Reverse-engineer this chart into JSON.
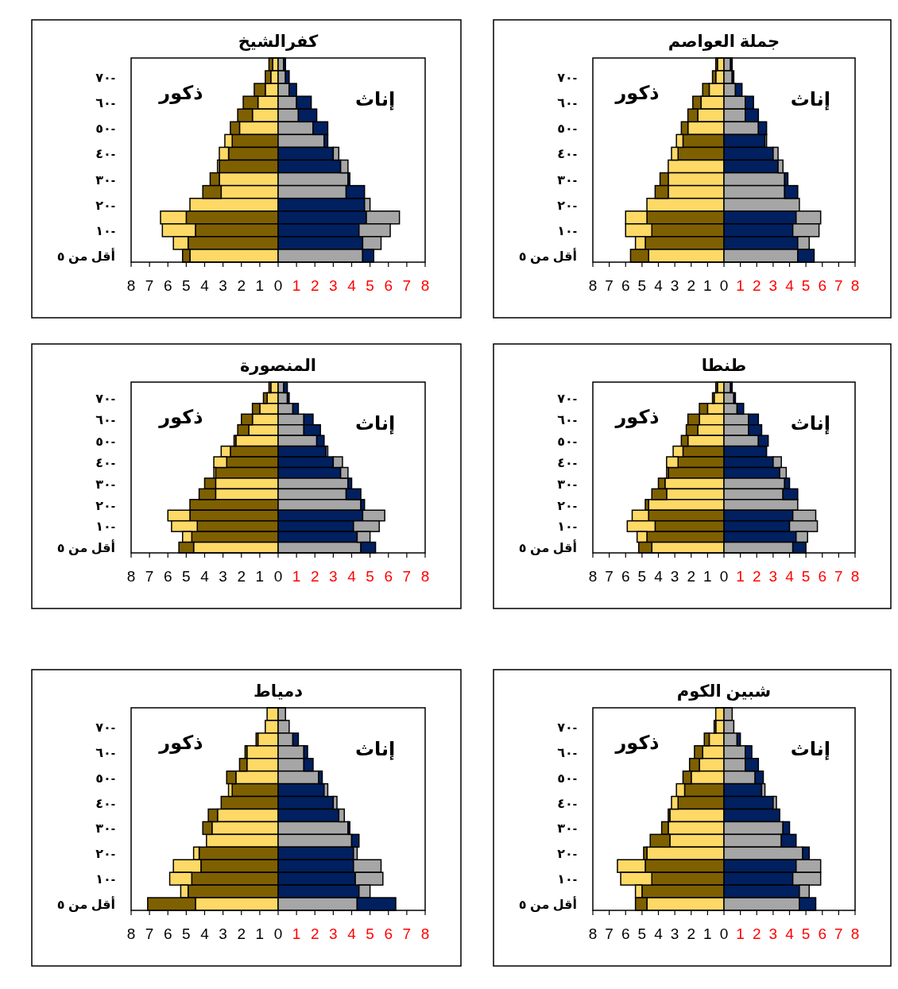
{
  "chart_data": [
    {
      "type": "bar",
      "orientation": "horizontal",
      "stacked": true,
      "title": "جملة العواصم",
      "annotations": [
        "ذكور",
        "إناث"
      ],
      "categories": [
        null,
        "٧٠-",
        null,
        "٦٠-",
        null,
        "٥٠-",
        null,
        "٤٠-",
        null,
        "٣٠-",
        null,
        "٢٠-",
        null,
        "١٠-",
        null,
        "أقل من ٥"
      ],
      "xlim": [
        -8,
        8
      ],
      "xticks": [
        {
          "value": -8,
          "label": "8"
        },
        {
          "value": -7,
          "label": "7"
        },
        {
          "value": -6,
          "label": "6"
        },
        {
          "value": -5,
          "label": "5"
        },
        {
          "value": -4,
          "label": "4"
        },
        {
          "value": -3,
          "label": "3"
        },
        {
          "value": -2,
          "label": "2"
        },
        {
          "value": -1,
          "label": "1"
        },
        0,
        1,
        2,
        3,
        4,
        5,
        6,
        7,
        8
      ],
      "series": [
        {
          "values": [
            -0.4,
            -0.5,
            -0.9,
            -1.4,
            -1.6,
            -2.2,
            -2.5,
            -2.8,
            -3.4,
            -3.4,
            -3.4,
            -4.7,
            -4.7,
            -4.4,
            -4.8,
            -4.6
          ],
          "colors": [
            "#ffd966",
            "#ffd966",
            "#ffd966",
            "#ffd966",
            "#ffd966",
            "#ffd966",
            "#7f6000",
            "#7f6000",
            "#ffd966",
            "#ffd966",
            "#ffd966",
            "#ffd966",
            "#7f6000",
            "#7f6000",
            "#7f6000",
            "#ffd966"
          ]
        },
        {
          "values": [
            -0.1,
            -0.2,
            -0.4,
            -0.5,
            -0.6,
            -0.4,
            -0.4,
            -0.4,
            0,
            -0.5,
            -0.8,
            0,
            -1.3,
            -1.6,
            -0.6,
            -1.1
          ],
          "colors": [
            "#7f6000",
            "#7f6000",
            "#7f6000",
            "#7f6000",
            "#7f6000",
            "#7f6000",
            "#ffd966",
            "#ffd966",
            "#7f6000",
            "#7f6000",
            "#7f6000",
            "#7f6000",
            "#ffd966",
            "#ffd966",
            "#ffd966",
            "#7f6000"
          ]
        },
        {
          "values": [
            0.4,
            0.5,
            0.7,
            1.3,
            1.3,
            2.1,
            2.5,
            3.0,
            3.3,
            3.7,
            3.7,
            4.6,
            4.4,
            4.2,
            4.5,
            4.5
          ],
          "colors": [
            "#a6a6a6",
            "#a6a6a6",
            "#a6a6a6",
            "#a6a6a6",
            "#a6a6a6",
            "#a6a6a6",
            "#002060",
            "#002060",
            "#002060",
            "#a6a6a6",
            "#a6a6a6",
            "#a6a6a6",
            "#002060",
            "#002060",
            "#002060",
            "#a6a6a6"
          ]
        },
        {
          "values": [
            0.1,
            0.1,
            0.4,
            0.5,
            0.8,
            0.5,
            0.1,
            0.3,
            0.3,
            0.2,
            0.8,
            0,
            1.5,
            1.6,
            0.7,
            1.0
          ],
          "colors": [
            "#002060",
            "#002060",
            "#002060",
            "#002060",
            "#002060",
            "#002060",
            "#a6a6a6",
            "#a6a6a6",
            "#a6a6a6",
            "#002060",
            "#002060",
            "#002060",
            "#a6a6a6",
            "#a6a6a6",
            "#a6a6a6",
            "#002060"
          ]
        }
      ]
    },
    {
      "type": "bar",
      "orientation": "horizontal",
      "stacked": true,
      "title": "كفرالشيخ",
      "annotations": [
        "ذكور",
        "إناث"
      ],
      "categories": [
        null,
        "٧٠-",
        null,
        "٦٠-",
        null,
        "٥٠-",
        null,
        "٤٠-",
        null,
        "٣٠-",
        null,
        "٢٠-",
        null,
        "١٠-",
        null,
        "أقل من ٥"
      ],
      "xlim": [
        -8,
        8
      ],
      "xticks": [
        {
          "value": -8,
          "label": "8"
        },
        {
          "value": -7,
          "label": "7"
        },
        {
          "value": -6,
          "label": "6"
        },
        {
          "value": -5,
          "label": "5"
        },
        {
          "value": -4,
          "label": "4"
        },
        {
          "value": -3,
          "label": "3"
        },
        {
          "value": -2,
          "label": "2"
        },
        {
          "value": -1,
          "label": "1"
        },
        0,
        1,
        2,
        3,
        4,
        5,
        6,
        7,
        8
      ],
      "series": [
        {
          "values": [
            -0.3,
            -0.4,
            -0.7,
            -1.1,
            -1.4,
            -2.1,
            -2.5,
            -2.7,
            -3.2,
            -3.2,
            -3.1,
            -4.8,
            -5.0,
            -4.5,
            -4.9,
            -4.8
          ],
          "colors": [
            "#ffd966",
            "#ffd966",
            "#ffd966",
            "#ffd966",
            "#ffd966",
            "#ffd966",
            "#7f6000",
            "#7f6000",
            "#7f6000",
            "#ffd966",
            "#ffd966",
            "#ffd966",
            "#7f6000",
            "#7f6000",
            "#7f6000",
            "#ffd966"
          ]
        },
        {
          "values": [
            -0.2,
            -0.3,
            -0.6,
            -0.8,
            -0.8,
            -0.5,
            -0.4,
            -0.5,
            -0.1,
            -0.5,
            -1.0,
            0,
            -1.4,
            -1.8,
            -0.8,
            -0.4
          ],
          "colors": [
            "#7f6000",
            "#7f6000",
            "#7f6000",
            "#7f6000",
            "#7f6000",
            "#7f6000",
            "#ffd966",
            "#ffd966",
            "#ffd966",
            "#7f6000",
            "#7f6000",
            "#7f6000",
            "#ffd966",
            "#ffd966",
            "#ffd966",
            "#7f6000"
          ]
        },
        {
          "values": [
            0.3,
            0.4,
            0.6,
            1.0,
            1.1,
            1.9,
            2.5,
            3.0,
            3.4,
            3.8,
            3.7,
            4.7,
            4.8,
            4.4,
            4.6,
            4.6
          ],
          "colors": [
            "#a6a6a6",
            "#a6a6a6",
            "#a6a6a6",
            "#a6a6a6",
            "#a6a6a6",
            "#a6a6a6",
            "#a6a6a6",
            "#002060",
            "#002060",
            "#a6a6a6",
            "#a6a6a6",
            "#002060",
            "#002060",
            "#002060",
            "#002060",
            "#a6a6a6"
          ]
        },
        {
          "values": [
            0.1,
            0.2,
            0.4,
            0.8,
            1.0,
            0.8,
            0.2,
            0.3,
            0.4,
            0.1,
            1.0,
            0.3,
            1.8,
            1.7,
            1.0,
            0.6
          ],
          "colors": [
            "#002060",
            "#002060",
            "#002060",
            "#002060",
            "#002060",
            "#002060",
            "#002060",
            "#a6a6a6",
            "#a6a6a6",
            "#002060",
            "#002060",
            "#a6a6a6",
            "#a6a6a6",
            "#a6a6a6",
            "#a6a6a6",
            "#002060"
          ]
        }
      ]
    },
    {
      "type": "bar",
      "orientation": "horizontal",
      "stacked": true,
      "title": "طنطا",
      "annotations": [
        "ذكور",
        "إناث"
      ],
      "categories": [
        null,
        "٧٠-",
        null,
        "٦٠-",
        null,
        "٥٠-",
        null,
        "٤٠-",
        null,
        "٣٠-",
        null,
        "٢٠-",
        null,
        "١٠-",
        null,
        "أقل من ٥"
      ],
      "xlim": [
        -8,
        8
      ],
      "xticks": [
        {
          "value": -8,
          "label": "8"
        },
        {
          "value": -7,
          "label": "7"
        },
        {
          "value": -6,
          "label": "6"
        },
        {
          "value": -5,
          "label": "5"
        },
        {
          "value": -4,
          "label": "4"
        },
        {
          "value": -3,
          "label": "3"
        },
        {
          "value": -2,
          "label": "2"
        },
        {
          "value": -1,
          "label": "1"
        },
        0,
        1,
        2,
        3,
        4,
        5,
        6,
        7,
        8
      ],
      "series": [
        {
          "values": [
            -0.4,
            -0.6,
            -1.0,
            -1.5,
            -1.6,
            -2.2,
            -2.5,
            -2.8,
            -3.4,
            -3.6,
            -3.5,
            -4.6,
            -4.6,
            -4.2,
            -4.7,
            -4.4
          ],
          "colors": [
            "#ffd966",
            "#ffd966",
            "#ffd966",
            "#ffd966",
            "#ffd966",
            "#ffd966",
            "#7f6000",
            "#7f6000",
            "#7f6000",
            "#ffd966",
            "#ffd966",
            "#ffd966",
            "#7f6000",
            "#7f6000",
            "#7f6000",
            "#ffd966"
          ]
        },
        {
          "values": [
            -0.1,
            -0.1,
            -0.5,
            -0.7,
            -0.7,
            -0.4,
            -0.6,
            -0.7,
            -0.1,
            -0.4,
            -0.9,
            -0.2,
            -1.0,
            -1.7,
            -0.6,
            -0.8
          ],
          "colors": [
            "#7f6000",
            "#7f6000",
            "#7f6000",
            "#7f6000",
            "#7f6000",
            "#7f6000",
            "#ffd966",
            "#ffd966",
            "#ffd966",
            "#7f6000",
            "#7f6000",
            "#7f6000",
            "#ffd966",
            "#ffd966",
            "#ffd966",
            "#7f6000"
          ]
        },
        {
          "values": [
            0.4,
            0.6,
            0.8,
            1.5,
            1.5,
            2.1,
            2.6,
            3.0,
            3.4,
            3.7,
            3.6,
            4.5,
            4.2,
            4.0,
            4.4,
            4.2
          ],
          "colors": [
            "#a6a6a6",
            "#a6a6a6",
            "#a6a6a6",
            "#a6a6a6",
            "#a6a6a6",
            "#a6a6a6",
            "#002060",
            "#002060",
            "#002060",
            "#a6a6a6",
            "#a6a6a6",
            "#a6a6a6",
            "#002060",
            "#002060",
            "#002060",
            "#a6a6a6"
          ]
        },
        {
          "values": [
            0.1,
            0.1,
            0.4,
            0.6,
            0.8,
            0.6,
            0,
            0.5,
            0.4,
            0.3,
            0.9,
            0,
            1.4,
            1.7,
            0.7,
            0.8
          ],
          "colors": [
            "#002060",
            "#002060",
            "#002060",
            "#002060",
            "#002060",
            "#002060",
            "#a6a6a6",
            "#a6a6a6",
            "#a6a6a6",
            "#002060",
            "#002060",
            "#002060",
            "#a6a6a6",
            "#a6a6a6",
            "#a6a6a6",
            "#002060"
          ]
        }
      ]
    },
    {
      "type": "bar",
      "orientation": "horizontal",
      "stacked": true,
      "title": "المنصورة",
      "annotations": [
        "ذكور",
        "إناث"
      ],
      "categories": [
        null,
        "٧٠-",
        null,
        "٦٠-",
        null,
        "٥٠-",
        null,
        "٤٠-",
        null,
        "٣٠-",
        null,
        "٢٠-",
        null,
        "١٠-",
        null,
        "أقل من ٥"
      ],
      "xlim": [
        -8,
        8
      ],
      "xticks": [
        {
          "value": -8,
          "label": "8"
        },
        {
          "value": -7,
          "label": "7"
        },
        {
          "value": -6,
          "label": "6"
        },
        {
          "value": -5,
          "label": "5"
        },
        {
          "value": -4,
          "label": "4"
        },
        {
          "value": -3,
          "label": "3"
        },
        {
          "value": -2,
          "label": "2"
        },
        {
          "value": -1,
          "label": "1"
        },
        0,
        1,
        2,
        3,
        4,
        5,
        6,
        7,
        8
      ],
      "series": [
        {
          "values": [
            -0.4,
            -0.6,
            -1.0,
            -1.4,
            -1.6,
            -2.3,
            -2.6,
            -2.8,
            -3.4,
            -3.4,
            -3.4,
            -4.8,
            -4.8,
            -4.4,
            -4.7,
            -4.6
          ],
          "colors": [
            "#ffd966",
            "#ffd966",
            "#ffd966",
            "#ffd966",
            "#ffd966",
            "#ffd966",
            "#7f6000",
            "#7f6000",
            "#7f6000",
            "#ffd966",
            "#ffd966",
            "#7f6000",
            "#7f6000",
            "#7f6000",
            "#7f6000",
            "#ffd966"
          ]
        },
        {
          "values": [
            -0.1,
            -0.2,
            -0.4,
            -0.6,
            -0.6,
            -0.1,
            -0.5,
            -0.7,
            -0.1,
            -0.6,
            -0.9,
            0,
            -1.2,
            -1.4,
            -0.5,
            -0.8
          ],
          "colors": [
            "#7f6000",
            "#7f6000",
            "#7f6000",
            "#7f6000",
            "#7f6000",
            "#7f6000",
            "#ffd966",
            "#ffd966",
            "#ffd966",
            "#7f6000",
            "#7f6000",
            "#ffd966",
            "#ffd966",
            "#ffd966",
            "#ffd966",
            "#7f6000"
          ]
        },
        {
          "values": [
            0.3,
            0.5,
            0.8,
            1.4,
            1.4,
            2.1,
            2.6,
            3.0,
            3.4,
            3.8,
            3.7,
            4.5,
            4.6,
            4.1,
            4.3,
            4.5
          ],
          "colors": [
            "#a6a6a6",
            "#a6a6a6",
            "#a6a6a6",
            "#a6a6a6",
            "#a6a6a6",
            "#a6a6a6",
            "#002060",
            "#002060",
            "#002060",
            "#a6a6a6",
            "#a6a6a6",
            "#a6a6a6",
            "#002060",
            "#002060",
            "#002060",
            "#a6a6a6"
          ]
        },
        {
          "values": [
            0.2,
            0.1,
            0.3,
            0.5,
            0.9,
            0.4,
            0.1,
            0.5,
            0.4,
            0.2,
            0.8,
            0.2,
            1.2,
            1.4,
            0.7,
            0.8
          ],
          "colors": [
            "#002060",
            "#002060",
            "#002060",
            "#002060",
            "#002060",
            "#002060",
            "#a6a6a6",
            "#a6a6a6",
            "#a6a6a6",
            "#002060",
            "#002060",
            "#002060",
            "#a6a6a6",
            "#a6a6a6",
            "#a6a6a6",
            "#002060"
          ]
        }
      ]
    },
    {
      "type": "bar",
      "orientation": "horizontal",
      "stacked": true,
      "title": "شبين الكوم",
      "annotations": [
        "ذكور",
        "إناث"
      ],
      "categories": [
        null,
        "٧٠-",
        null,
        "٦٠-",
        null,
        "٥٠-",
        null,
        "٤٠-",
        null,
        "٣٠-",
        null,
        "٢٠-",
        null,
        "١٠-",
        null,
        "أقل من ٥"
      ],
      "xlim": [
        -8,
        8
      ],
      "xticks": [
        {
          "value": -8,
          "label": "8"
        },
        {
          "value": -7,
          "label": "7"
        },
        {
          "value": -6,
          "label": "6"
        },
        {
          "value": -5,
          "label": "5"
        },
        {
          "value": -4,
          "label": "4"
        },
        {
          "value": -3,
          "label": "3"
        },
        {
          "value": -2,
          "label": "2"
        },
        {
          "value": -1,
          "label": "1"
        },
        0,
        1,
        2,
        3,
        4,
        5,
        6,
        7,
        8
      ],
      "series": [
        {
          "values": [
            -0.5,
            -0.5,
            -0.9,
            -1.3,
            -1.5,
            -2.0,
            -2.4,
            -2.8,
            -3.3,
            -3.4,
            -3.3,
            -4.7,
            -4.8,
            -4.4,
            -5.0,
            -4.7
          ],
          "colors": [
            "#ffd966",
            "#ffd966",
            "#ffd966",
            "#ffd966",
            "#ffd966",
            "#ffd966",
            "#7f6000",
            "#7f6000",
            "#ffd966",
            "#ffd966",
            "#ffd966",
            "#ffd966",
            "#7f6000",
            "#7f6000",
            "#7f6000",
            "#ffd966"
          ]
        },
        {
          "values": [
            0,
            -0.1,
            -0.3,
            -0.5,
            -0.6,
            -0.5,
            -0.5,
            -0.4,
            -0.1,
            -0.4,
            -1.2,
            -0.2,
            -1.7,
            -1.9,
            -0.4,
            -0.7
          ],
          "colors": [
            "#7f6000",
            "#7f6000",
            "#7f6000",
            "#7f6000",
            "#7f6000",
            "#7f6000",
            "#ffd966",
            "#ffd966",
            "#7f6000",
            "#7f6000",
            "#7f6000",
            "#7f6000",
            "#ffd966",
            "#ffd966",
            "#ffd966",
            "#7f6000"
          ]
        },
        {
          "values": [
            0.5,
            0.6,
            0.8,
            1.3,
            1.3,
            1.9,
            2.3,
            3.0,
            3.4,
            3.6,
            3.5,
            4.8,
            4.4,
            4.2,
            4.6,
            4.6
          ],
          "colors": [
            "#a6a6a6",
            "#a6a6a6",
            "#a6a6a6",
            "#a6a6a6",
            "#a6a6a6",
            "#a6a6a6",
            "#002060",
            "#002060",
            "#002060",
            "#a6a6a6",
            "#a6a6a6",
            "#a6a6a6",
            "#002060",
            "#002060",
            "#002060",
            "#a6a6a6"
          ]
        },
        {
          "values": [
            0,
            0,
            0.2,
            0.4,
            0.8,
            0.5,
            0.2,
            0.2,
            0,
            0.4,
            0.9,
            0.4,
            1.5,
            1.7,
            0.6,
            1.0
          ],
          "colors": [
            "#002060",
            "#002060",
            "#002060",
            "#002060",
            "#002060",
            "#002060",
            "#a6a6a6",
            "#a6a6a6",
            "#a6a6a6",
            "#002060",
            "#002060",
            "#002060",
            "#a6a6a6",
            "#a6a6a6",
            "#a6a6a6",
            "#002060"
          ]
        }
      ]
    },
    {
      "type": "bar",
      "orientation": "horizontal",
      "stacked": true,
      "title": "دمياط",
      "annotations": [
        "ذكور",
        "إناث"
      ],
      "categories": [
        null,
        "٧٠-",
        null,
        "٦٠-",
        null,
        "٥٠-",
        null,
        "٤٠-",
        null,
        "٣٠-",
        null,
        "٢٠-",
        null,
        "١٠-",
        null,
        "أقل من ٥"
      ],
      "xlim": [
        -8,
        8
      ],
      "xticks": [
        {
          "value": -8,
          "label": "8"
        },
        {
          "value": -7,
          "label": "7"
        },
        {
          "value": -6,
          "label": "6"
        },
        {
          "value": -5,
          "label": "5"
        },
        {
          "value": -4,
          "label": "4"
        },
        {
          "value": -3,
          "label": "3"
        },
        {
          "value": -2,
          "label": "2"
        },
        {
          "value": -1,
          "label": "1"
        },
        0,
        1,
        2,
        3,
        4,
        5,
        6,
        7,
        8
      ],
      "series": [
        {
          "values": [
            -0.6,
            -0.7,
            -1.1,
            -1.7,
            -1.7,
            -2.3,
            -2.5,
            -3.1,
            -3.3,
            -3.6,
            -3.9,
            -4.3,
            -4.2,
            -4.7,
            -4.9,
            -4.5
          ],
          "colors": [
            "#ffd966",
            "#ffd966",
            "#ffd966",
            "#ffd966",
            "#ffd966",
            "#ffd966",
            "#7f6000",
            "#7f6000",
            "#ffd966",
            "#ffd966",
            "#ffd966",
            "#7f6000",
            "#7f6000",
            "#7f6000",
            "#7f6000",
            "#ffd966"
          ]
        },
        {
          "values": [
            0,
            0,
            -0.1,
            -0.1,
            -0.4,
            -0.5,
            -0.2,
            0,
            -0.5,
            -0.5,
            0,
            -0.3,
            -1.5,
            -1.2,
            -0.4,
            -2.6
          ],
          "colors": [
            "#7f6000",
            "#7f6000",
            "#7f6000",
            "#7f6000",
            "#7f6000",
            "#7f6000",
            "#ffd966",
            "#ffd966",
            "#7f6000",
            "#7f6000",
            "#7f6000",
            "#ffd966",
            "#ffd966",
            "#ffd966",
            "#ffd966",
            "#7f6000"
          ]
        },
        {
          "values": [
            0.4,
            0.6,
            0.8,
            1.4,
            1.4,
            2.2,
            2.5,
            3.0,
            3.3,
            3.8,
            4.0,
            4.1,
            4.1,
            4.2,
            4.4,
            4.3
          ],
          "colors": [
            "#a6a6a6",
            "#a6a6a6",
            "#a6a6a6",
            "#a6a6a6",
            "#a6a6a6",
            "#a6a6a6",
            "#002060",
            "#002060",
            "#002060",
            "#a6a6a6",
            "#a6a6a6",
            "#002060",
            "#002060",
            "#002060",
            "#002060",
            "#a6a6a6"
          ]
        },
        {
          "values": [
            0,
            0,
            0.3,
            0.2,
            0.5,
            0.2,
            0.2,
            0.2,
            0.3,
            0.1,
            0.4,
            0.2,
            1.5,
            1.5,
            0.6,
            2.1
          ],
          "colors": [
            "#002060",
            "#002060",
            "#002060",
            "#002060",
            "#002060",
            "#002060",
            "#a6a6a6",
            "#a6a6a6",
            "#a6a6a6",
            "#002060",
            "#002060",
            "#a6a6a6",
            "#a6a6a6",
            "#a6a6a6",
            "#a6a6a6",
            "#002060"
          ]
        }
      ]
    }
  ]
}
